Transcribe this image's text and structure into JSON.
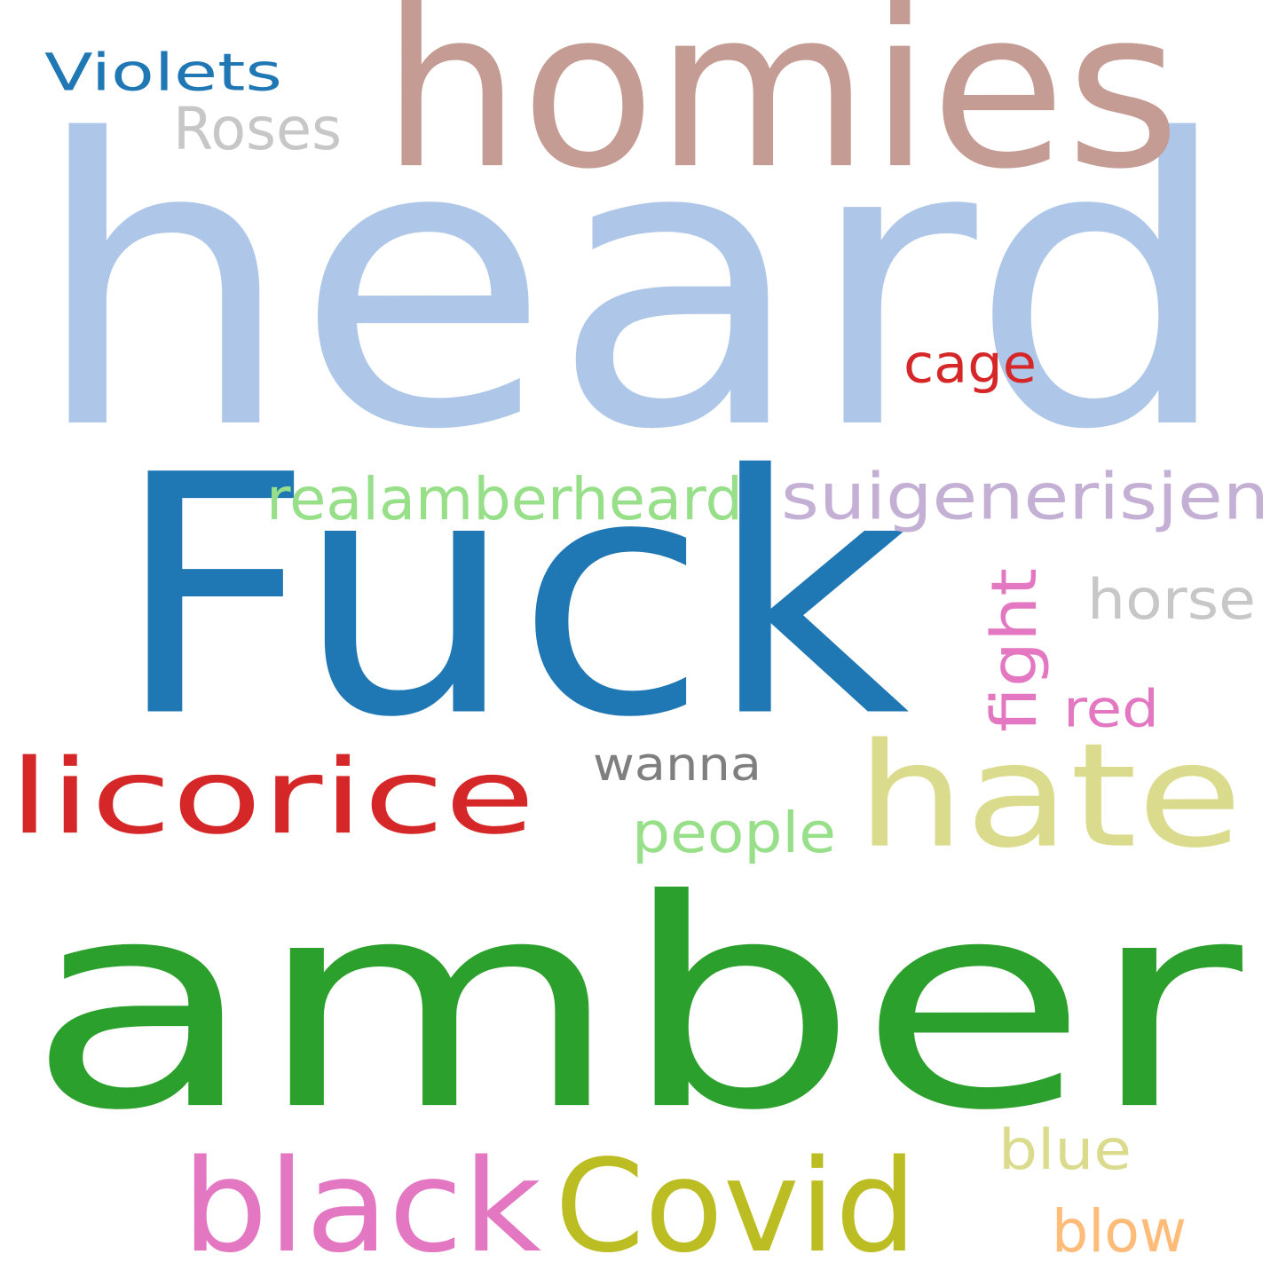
{
  "words": [
    {
      "text": "heard",
      "color": "#aec7e8"
    },
    {
      "text": "homies",
      "color": "#c49c94"
    },
    {
      "text": "Violets",
      "color": "#1f77b4"
    },
    {
      "text": "Roses",
      "color": "#c7c7c7"
    },
    {
      "text": "cage",
      "color": "#d62728"
    },
    {
      "text": "Fuck",
      "color": "#1f77b4"
    },
    {
      "text": "realamberheard",
      "color": "#98df8a"
    },
    {
      "text": "suigenerisjen",
      "color": "#c5b0d5"
    },
    {
      "text": "fight",
      "color": "#e377c2",
      "rotated": true
    },
    {
      "text": "horse",
      "color": "#c7c7c7"
    },
    {
      "text": "red",
      "color": "#e377c2"
    },
    {
      "text": "licorice",
      "color": "#d62728"
    },
    {
      "text": "wanna",
      "color": "#7f7f7f"
    },
    {
      "text": "hate",
      "color": "#dbdb8d"
    },
    {
      "text": "people",
      "color": "#98df8a"
    },
    {
      "text": "amber",
      "color": "#2ca02c"
    },
    {
      "text": "blue",
      "color": "#dbdb8d"
    },
    {
      "text": "black",
      "color": "#e377c2"
    },
    {
      "text": "Covid",
      "color": "#bcbd22"
    },
    {
      "text": "blow",
      "color": "#ffbb78"
    }
  ]
}
